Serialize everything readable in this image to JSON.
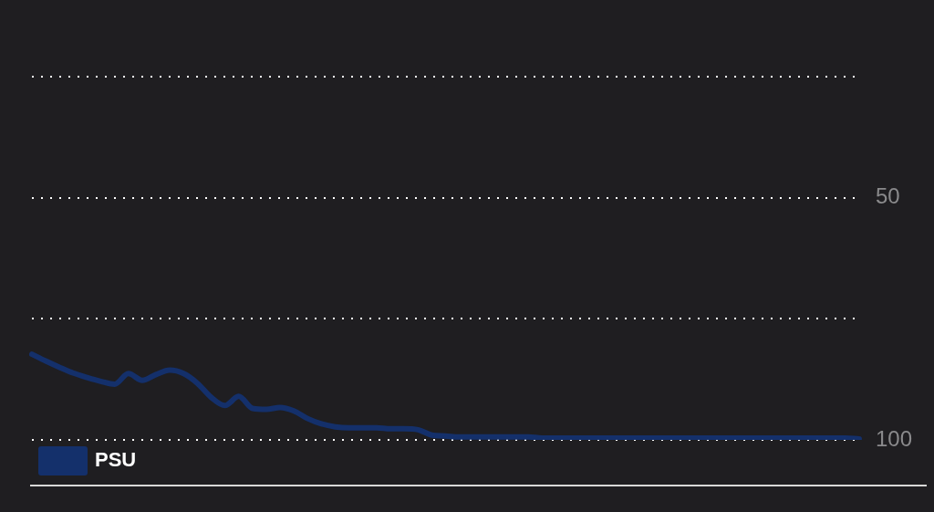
{
  "chart_data": {
    "type": "line",
    "categories": [
      null,
      null,
      null,
      null,
      null,
      null,
      null,
      null,
      null,
      null,
      null,
      null,
      null,
      null,
      null,
      null,
      null,
      null,
      null,
      null,
      null,
      null,
      null,
      null,
      null,
      null,
      null,
      null,
      null,
      null,
      null,
      null,
      null,
      null,
      null,
      null,
      null,
      null,
      null,
      null,
      null,
      null,
      null,
      null,
      null,
      null,
      null,
      null,
      null,
      null,
      null,
      null,
      null,
      null,
      null,
      null,
      null,
      null,
      null,
      null,
      null
    ],
    "series": [
      {
        "name": "PSU",
        "color": "#14306b",
        "values": [
          82.3,
          83.7,
          85.0,
          86.2,
          87.1,
          87.9,
          88.5,
          86.3,
          87.7,
          86.5,
          85.6,
          86.3,
          88.3,
          91.2,
          92.9,
          91.0,
          93.5,
          93.7,
          93.3,
          94.0,
          95.6,
          96.7,
          97.3,
          97.5,
          97.5,
          97.5,
          97.7,
          97.7,
          97.9,
          99.0,
          99.2,
          99.4,
          99.4,
          99.4,
          99.4,
          99.4,
          99.4,
          99.6,
          99.6,
          99.6,
          99.6,
          99.6,
          99.6,
          99.6,
          99.6,
          99.6,
          99.6,
          99.6,
          99.6,
          99.6,
          99.6,
          99.6,
          99.6,
          99.6,
          99.6,
          99.6,
          99.6,
          99.6,
          99.6,
          99.6,
          99.8
        ]
      }
    ],
    "ylim": [
      100,
      25
    ],
    "yticks": [
      {
        "value": 25,
        "label": null
      },
      50,
      {
        "value": 75,
        "label": null
      },
      100
    ],
    "grid": "y",
    "legend": "bottom left",
    "marker": "none",
    "line_style": "solid",
    "tick_labels": "y"
  }
}
